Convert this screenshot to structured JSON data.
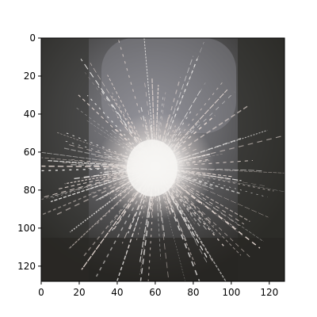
{
  "image": {
    "description_icon": "sparkler-spark-burst-photo",
    "x_range": [
      0,
      128
    ],
    "y_range": [
      0,
      128
    ],
    "colors": {
      "background": "#2a2926",
      "vignette_light": "#8c8c94",
      "spark_core": "#f2f0ee",
      "spark_trail": "#e9dcd6"
    }
  },
  "axes": {
    "x_ticks": [
      {
        "value": 0,
        "label": "0"
      },
      {
        "value": 20,
        "label": "20"
      },
      {
        "value": 40,
        "label": "40"
      },
      {
        "value": 60,
        "label": "60"
      },
      {
        "value": 80,
        "label": "80"
      },
      {
        "value": 100,
        "label": "100"
      },
      {
        "value": 120,
        "label": "120"
      }
    ],
    "y_ticks": [
      {
        "value": 0,
        "label": "0"
      },
      {
        "value": 20,
        "label": "20"
      },
      {
        "value": 40,
        "label": "40"
      },
      {
        "value": 60,
        "label": "60"
      },
      {
        "value": 80,
        "label": "80"
      },
      {
        "value": 100,
        "label": "100"
      },
      {
        "value": 120,
        "label": "120"
      }
    ]
  }
}
